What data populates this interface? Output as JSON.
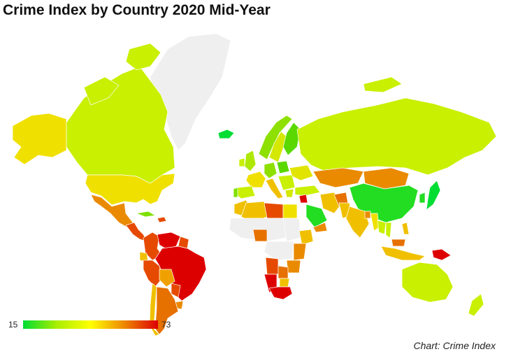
{
  "title": "Crime Index by Country 2020 Mid-Year",
  "credit": "Chart: Crime Index",
  "legend": {
    "min_label": "15",
    "max_label": "73",
    "colors": [
      "#00dd33",
      "#aaee00",
      "#ffff00",
      "#ee8800",
      "#dd0000"
    ]
  },
  "colors": {
    "no_data": "#efefef",
    "border": "#ffffff",
    "background": "#ffffff"
  }
}
